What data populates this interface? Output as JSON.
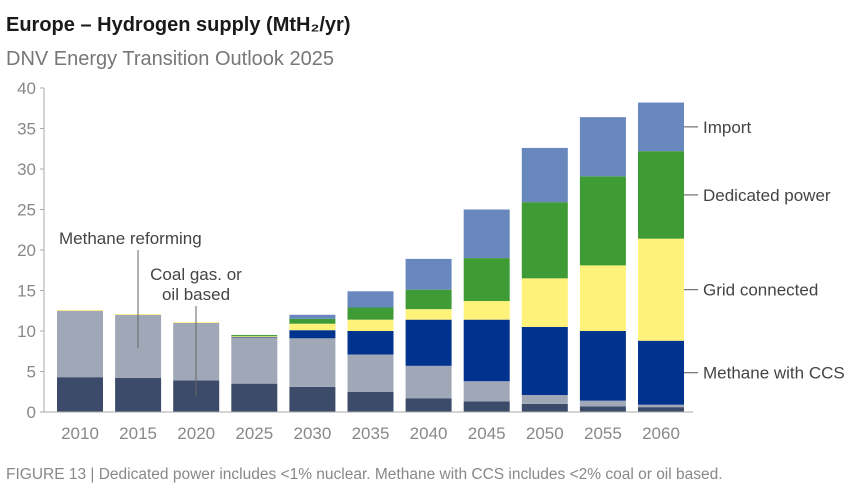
{
  "chart_data": {
    "type": "bar",
    "stacked": true,
    "title": "Europe – Hydrogen supply (MtH₂/yr)",
    "subtitle": "DNV Energy Transition Outlook 2025",
    "caption": "FIGURE 13 | Dedicated power includes <1% nuclear. Methane with CCS includes <2% coal or oil based.",
    "categories": [
      "2010",
      "2015",
      "2020",
      "2025",
      "2030",
      "2035",
      "2040",
      "2045",
      "2050",
      "2055",
      "2060"
    ],
    "ylim": [
      0,
      40
    ],
    "yticks": [
      0,
      5,
      10,
      15,
      20,
      25,
      30,
      35,
      40
    ],
    "grid": false,
    "legend": "right (inline labels)",
    "series": [
      {
        "name": "Coal gas. or oil based",
        "color": "#3d4b6b",
        "values": [
          4.3,
          4.2,
          3.9,
          3.5,
          3.1,
          2.5,
          1.7,
          1.3,
          1.0,
          0.7,
          0.6
        ]
      },
      {
        "name": "Methane reforming",
        "color": "#a0a8b8",
        "values": [
          8.2,
          7.8,
          7.1,
          5.7,
          6.0,
          4.6,
          4.0,
          2.5,
          1.1,
          0.7,
          0.3
        ]
      },
      {
        "name": "Methane with CCS",
        "color": "#00338d",
        "values": [
          0,
          0,
          0,
          0.1,
          1.0,
          2.9,
          5.7,
          7.6,
          8.4,
          8.6,
          7.9
        ]
      },
      {
        "name": "Grid connected",
        "color": "#fff27a",
        "values": [
          0.1,
          0.1,
          0.1,
          0.05,
          0.8,
          1.4,
          1.3,
          2.3,
          6.0,
          8.1,
          12.6
        ]
      },
      {
        "name": "Dedicated power",
        "color": "#3f9b35",
        "values": [
          0,
          0,
          0,
          0.15,
          0.6,
          1.5,
          2.4,
          5.3,
          9.4,
          11.0,
          10.8
        ]
      },
      {
        "name": "Import",
        "color": "#6787bd",
        "values": [
          0,
          0,
          0,
          0,
          0.5,
          2.0,
          3.8,
          6.0,
          6.7,
          7.3,
          6.0
        ]
      }
    ],
    "annotations": {
      "methane_reforming": "Methane reforming",
      "coal_line1": "Coal gas. or",
      "coal_line2": "oil based"
    }
  }
}
